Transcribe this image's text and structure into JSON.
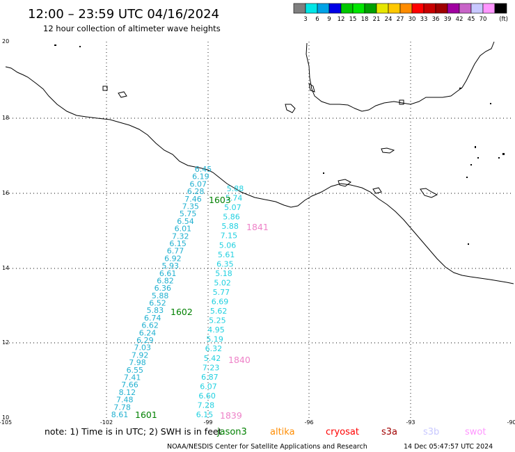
{
  "header": {
    "title": "12:00 – 23:59 UTC 04/16/2024",
    "subtitle": "12 hour collection of altimeter wave heights"
  },
  "colorbar": {
    "colors": [
      "#7f7f7f",
      "#00e6e6",
      "#00a2e6",
      "#0000e6",
      "#00c800",
      "#00e600",
      "#00a000",
      "#e6e600",
      "#ffc800",
      "#ff8c00",
      "#ff0000",
      "#c80000",
      "#a00000",
      "#a000a0",
      "#c864c8",
      "#c8c8ff",
      "#ff96ff",
      "#000000"
    ],
    "labels": [
      "3",
      "6",
      "9",
      "12",
      "15",
      "18",
      "21",
      "24",
      "27",
      "30",
      "33",
      "36",
      "39",
      "42",
      "45",
      "70"
    ],
    "unit": "(ft)"
  },
  "axes": {
    "lat_labels": [
      "20",
      "18",
      "16",
      "14",
      "12",
      "10"
    ],
    "lon_labels": [
      "-105",
      "-102",
      "-99",
      "-96",
      "-93",
      "-90"
    ]
  },
  "tracks": [
    {
      "id": "A",
      "color": "#20b0d0",
      "values": [
        "6.45",
        "6.19",
        "6.07",
        "6.28",
        "7.46",
        "7.35",
        "5.75",
        "6.54",
        "6.01",
        "7.32",
        "6.15",
        "6.77",
        "6.92",
        "5.93",
        "6.61",
        "6.82",
        "6.36",
        "5.88",
        "6.52",
        "5.83",
        "6.74",
        "6.62",
        "6.24",
        "6.29",
        "7.03",
        "7.92",
        "7.98",
        "6.55",
        "7.41",
        "7.66",
        "8.12",
        "7.48",
        "7.78",
        "8.61"
      ]
    },
    {
      "id": "B",
      "color": "#20d0e0",
      "values": [
        "5.88",
        "5.74",
        "5.07",
        "5.86",
        "5.88",
        "7.15",
        "5.06",
        "5.61",
        "6.35",
        "5.18",
        "5.02",
        "5.77",
        "6.69",
        "5.62",
        "5.25",
        "4.95",
        "5.19",
        "6.32",
        "5.42",
        "7.23",
        "6.87",
        "6.07",
        "6.60",
        "7.28",
        "6.15"
      ]
    }
  ],
  "pass_labels": {
    "green": [
      "1603",
      "1602",
      "1601"
    ],
    "pink": [
      "1841",
      "1840",
      "1839"
    ]
  },
  "footer": {
    "note": "note: 1) Time is in UTC; 2) SWH is in feet",
    "satellites": [
      {
        "name": "jason3",
        "color": "#008000"
      },
      {
        "name": "altika",
        "color": "#ff8c00"
      },
      {
        "name": "cryosat",
        "color": "#ff0000"
      },
      {
        "name": "s3a",
        "color": "#a00000"
      },
      {
        "name": "s3b",
        "color": "#c8c8ff"
      },
      {
        "name": "swot",
        "color": "#ff96ff"
      }
    ],
    "credit": "NOAA/NESDIS Center for Satellite Applications and Research",
    "timestamp": "14 Dec 05:47:57 UTC 2024"
  }
}
